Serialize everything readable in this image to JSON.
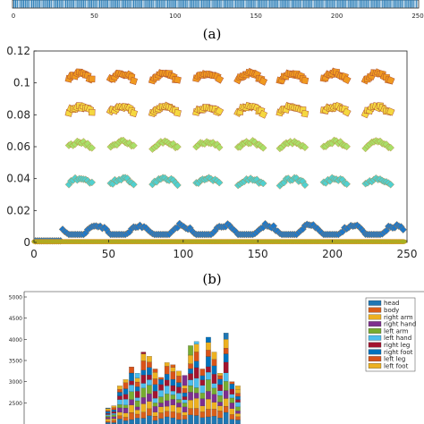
{
  "panels": {
    "a": {
      "caption": "(a)",
      "bar_color": "#1f77b4",
      "x_ticks": [
        "0",
        "50",
        "100",
        "150",
        "200",
        "250"
      ]
    },
    "b": {
      "caption": "(b)"
    }
  },
  "chart_data": [
    {
      "panel": "a",
      "type": "bar",
      "title": "",
      "xlabel": "",
      "ylabel": "",
      "xlim": [
        0,
        250
      ],
      "x_ticks": [
        0,
        50,
        100,
        150,
        200,
        250
      ],
      "note": "dense stripe of bars, top edge of panel only visible"
    },
    {
      "panel": "b",
      "type": "scatter",
      "title": "",
      "xlabel": "",
      "ylabel": "",
      "xlim": [
        0,
        250
      ],
      "ylim": [
        0,
        0.12
      ],
      "x_ticks": [
        0,
        50,
        100,
        150,
        200,
        250
      ],
      "y_ticks": [
        0,
        0.02,
        0.04,
        0.06,
        0.08,
        0.1,
        0.12
      ],
      "y_tick_labels": [
        "0",
        "0.02",
        "0.04",
        "0.06",
        "0.08",
        "0.1",
        "0.12"
      ],
      "grid": false,
      "series": [
        {
          "color": "#1f78c8",
          "base": 0.007,
          "amp": 0.006,
          "marker": "diamond"
        },
        {
          "color": "#50d0d0",
          "base": 0.036,
          "amp": 0.004,
          "marker": "diamond"
        },
        {
          "color": "#a8e06a",
          "base": 0.059,
          "amp": 0.004,
          "marker": "diamond"
        },
        {
          "color": "#f5d840",
          "base": 0.081,
          "amp": 0.004,
          "marker": "square"
        },
        {
          "color": "#f09a20",
          "base": 0.101,
          "amp": 0.005,
          "marker": "square"
        },
        {
          "color": "#a8b020",
          "base": 0.0,
          "amp": 0.0,
          "marker": "circle"
        }
      ]
    },
    {
      "panel": "c",
      "type": "bar",
      "stacked": true,
      "title": "",
      "xlabel": "",
      "ylabel": "",
      "ylim": [
        2000,
        5000
      ],
      "y_ticks": [
        2500,
        3000,
        3500,
        4000,
        4500,
        5000
      ],
      "y_tick_labels": [
        "2500",
        "3000",
        "3500",
        "4000",
        "4500",
        "5000"
      ],
      "legend_position": "top-right",
      "legend": [
        {
          "name": "head",
          "color": "#1f77b4"
        },
        {
          "name": "body",
          "color": "#d95f1a"
        },
        {
          "name": "right arm",
          "color": "#edb120"
        },
        {
          "name": "right hand",
          "color": "#7e2f8e"
        },
        {
          "name": "left arm",
          "color": "#77ac30"
        },
        {
          "name": "left hand",
          "color": "#4dbeee"
        },
        {
          "name": "right leg",
          "color": "#a2142f"
        },
        {
          "name": "right foot",
          "color": "#0072bd"
        },
        {
          "name": "left leg",
          "color": "#d95319"
        },
        {
          "name": "left foot",
          "color": "#edb120"
        }
      ],
      "totals": [
        2380,
        2430,
        2900,
        3050,
        3350,
        3200,
        3700,
        3600,
        3300,
        3100,
        3450,
        3400,
        3250,
        3150,
        3850,
        3950,
        3300,
        4050,
        3700,
        3200,
        4150,
        3000,
        2900
      ]
    }
  ]
}
